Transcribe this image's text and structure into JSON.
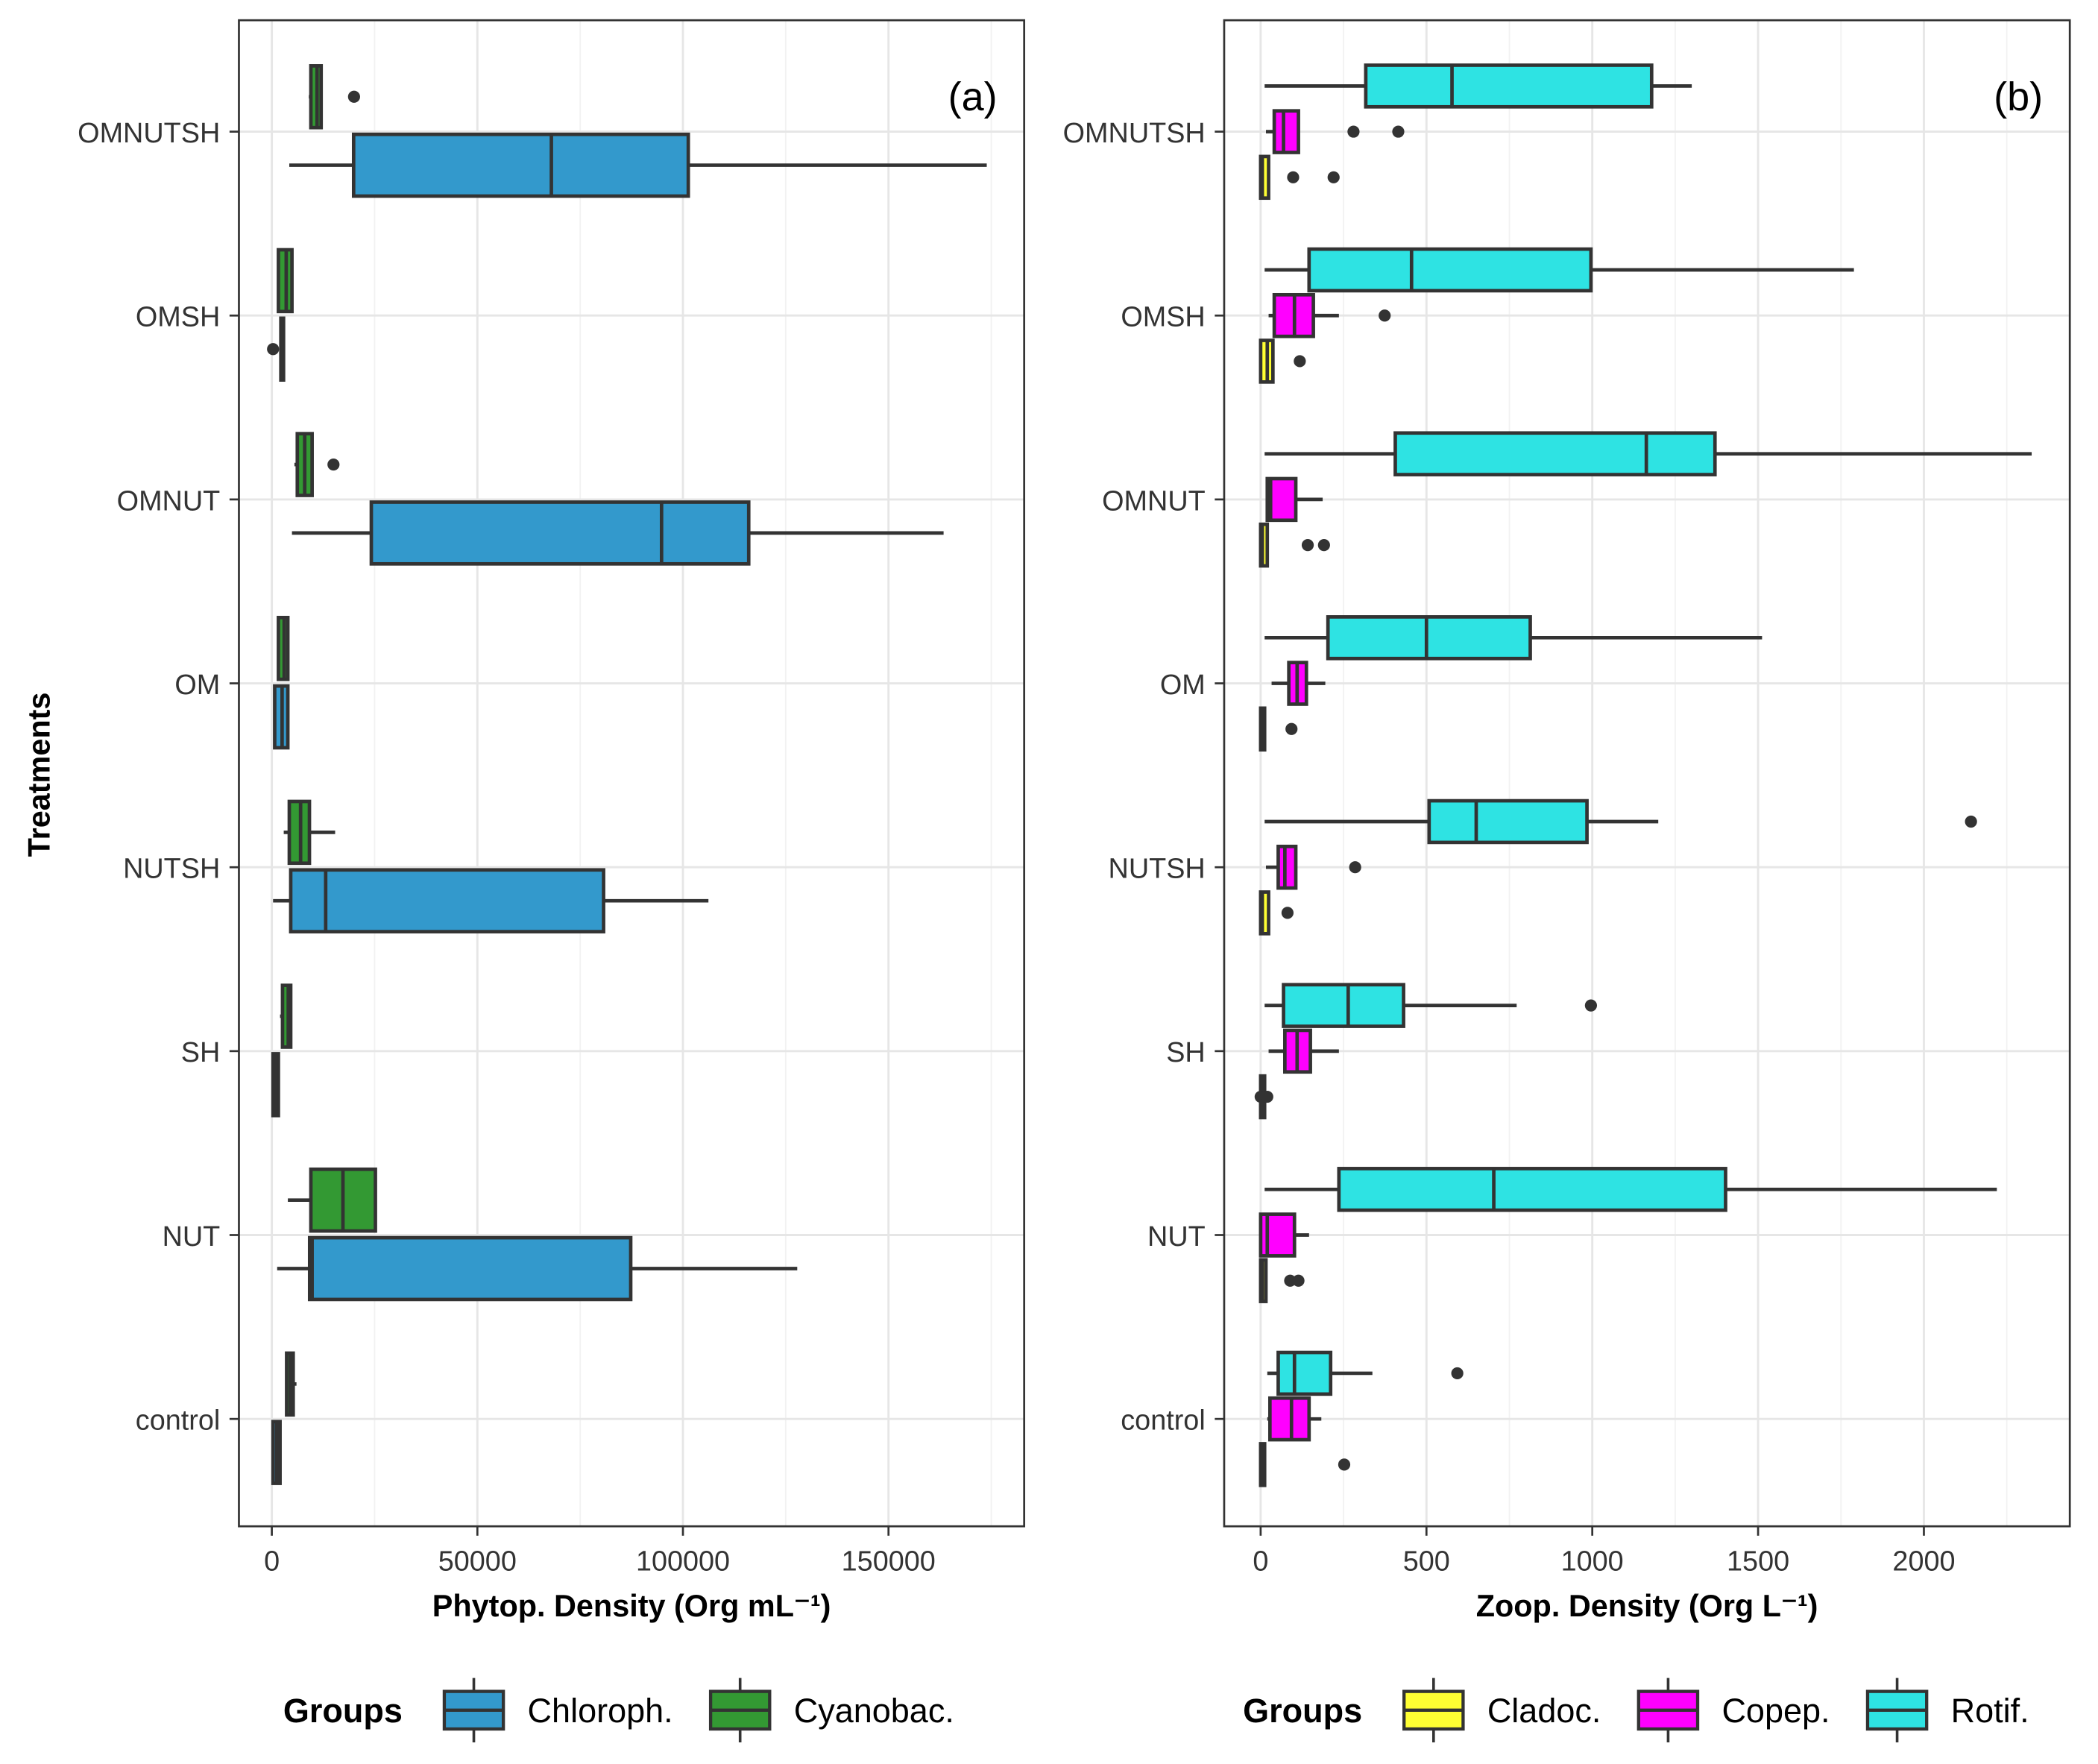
{
  "chart_data": [
    {
      "type": "boxplot",
      "panel_label": "(a)",
      "orientation": "horizontal",
      "xlabel": "Phytop. Density (Org mL⁻¹)",
      "ylabel": "Treatments",
      "xlim": [
        -8000,
        183000
      ],
      "xticks": [
        0,
        50000,
        100000,
        150000
      ],
      "xtick_labels": [
        "0",
        "50000",
        "100000",
        "150000"
      ],
      "categories": [
        "OMNUTSH",
        "OMSH",
        "OMNUT",
        "OM",
        "NUTSH",
        "SH",
        "NUT",
        "control"
      ],
      "legend": {
        "title": "Groups",
        "position": "bottom"
      },
      "groups": [
        {
          "name": "Chloroph.",
          "color": "#3399cc"
        },
        {
          "name": "Cyanobac.",
          "color": "#339933"
        }
      ],
      "data": {
        "OMNUTSH": {
          "Chloroph.": [
            4250,
            19900,
            68000,
            101300,
            173900,
            []
          ],
          "Cyanobac.": [
            9000,
            9500,
            11000,
            12000,
            12000,
            [
              20000
            ]
          ]
        },
        "OMSH": {
          "Chloroph.": [
            2000,
            2200,
            2500,
            2800,
            3000,
            [
              300
            ]
          ],
          "Cyanobac.": [
            1600,
            1600,
            3500,
            4900,
            4900,
            []
          ]
        },
        "OMNUT": {
          "Chloroph.": [
            4900,
            24200,
            94800,
            116000,
            163400,
            []
          ],
          "Cyanobac.": [
            5500,
            6200,
            8000,
            9800,
            9800,
            [
              15000
            ]
          ]
        },
        "OM": {
          "Chloroph.": [
            700,
            700,
            2500,
            3900,
            3900,
            []
          ],
          "Cyanobac.": [
            1600,
            1600,
            3000,
            3900,
            3900,
            []
          ]
        },
        "NUTSH": {
          "Chloroph.": [
            300,
            4600,
            13100,
            80700,
            106200,
            []
          ],
          "Cyanobac.": [
            2900,
            4250,
            7000,
            9150,
            15400,
            []
          ]
        },
        "SH": {
          "Chloroph.": [
            300,
            300,
            1000,
            1600,
            1600,
            []
          ],
          "Cyanobac.": [
            2000,
            2600,
            4000,
            4600,
            4600,
            []
          ]
        },
        "NUT": {
          "Chloroph.": [
            1300,
            9200,
            9800,
            87300,
            127800,
            []
          ],
          "Cyanobac.": [
            3900,
            9500,
            17300,
            25200,
            25200,
            []
          ]
        },
        "control": {
          "Chloroph.": [
            300,
            300,
            1200,
            2000,
            2000,
            []
          ],
          "Cyanobac.": [
            3600,
            3600,
            4500,
            5200,
            6000,
            []
          ]
        }
      }
    },
    {
      "type": "boxplot",
      "panel_label": "(b)",
      "orientation": "horizontal",
      "xlabel": "Zoop. Density (Org L⁻¹)",
      "ylabel": "",
      "xlim": [
        -110,
        2440
      ],
      "xticks": [
        0,
        500,
        1000,
        1500,
        2000
      ],
      "xtick_labels": [
        "0",
        "500",
        "1000",
        "1500",
        "2000"
      ],
      "categories": [
        "OMNUTSH",
        "OMSH",
        "OMNUT",
        "OM",
        "NUTSH",
        "SH",
        "NUT",
        "control"
      ],
      "legend": {
        "title": "Groups",
        "position": "bottom"
      },
      "groups": [
        {
          "name": "Cladoc.",
          "color": "#ffff33"
        },
        {
          "name": "Copep.",
          "color": "#ff00ff"
        },
        {
          "name": "Rotif.",
          "color": "#2ee3e3"
        }
      ],
      "data": {
        "OMNUTSH": {
          "Cladoc.": [
            0,
            0,
            5,
            24,
            24,
            [
              98,
              220
            ]
          ],
          "Copep.": [
            16,
            41,
            69,
            114,
            114,
            [
              280,
              415
            ]
          ],
          "Rotif.": [
            12,
            317,
            577,
            1179,
            1300,
            []
          ]
        },
        "OMSH": {
          "Cladoc.": [
            0,
            0,
            20,
            37,
            37,
            [
              118
            ]
          ],
          "Copep.": [
            24,
            41,
            102,
            159,
            236,
            [
              374
            ]
          ],
          "Rotif.": [
            12,
            146,
            455,
            996,
            1789,
            []
          ]
        },
        "OMNUT": {
          "Cladoc.": [
            0,
            0,
            5,
            20,
            20,
            [
              142,
              191
            ]
          ],
          "Copep.": [
            20,
            20,
            30,
            106,
            187,
            []
          ],
          "Rotif.": [
            12,
            406,
            1163,
            1370,
            2325,
            []
          ]
        },
        "OM": {
          "Cladoc.": [
            0,
            0,
            5,
            12,
            12,
            [
              93
            ]
          ],
          "Copep.": [
            33,
            85,
            110,
            138,
            195,
            []
          ],
          "Rotif.": [
            12,
            203,
            500,
            813,
            1512,
            []
          ]
        },
        "NUTSH": {
          "Cladoc.": [
            0,
            0,
            5,
            24,
            24,
            [
              81
            ]
          ],
          "Copep.": [
            16,
            53,
            73,
            106,
            106,
            [
              285
            ]
          ],
          "Rotif.": [
            12,
            508,
            650,
            984,
            1199,
            [
              2142
            ]
          ]
        },
        "SH": {
          "Cladoc.": [
            0,
            0,
            5,
            12,
            12,
            [
              0,
              20
            ]
          ],
          "Copep.": [
            24,
            73,
            110,
            150,
            236,
            []
          ],
          "Rotif.": [
            12,
            69,
            264,
            431,
            772,
            [
              996
            ]
          ]
        },
        "NUT": {
          "Cladoc.": [
            0,
            0,
            5,
            16,
            16,
            [
              89,
              114
            ]
          ],
          "Copep.": [
            0,
            0,
            20,
            102,
            146,
            []
          ],
          "Rotif.": [
            12,
            236,
            703,
            1402,
            2220,
            []
          ]
        },
        "control": {
          "Cladoc.": [
            0,
            0,
            5,
            12,
            12,
            [
              252
            ]
          ],
          "Copep.": [
            20,
            28,
            93,
            146,
            183,
            []
          ],
          "Rotif.": [
            20,
            53,
            102,
            211,
            337,
            [
              593
            ]
          ]
        }
      }
    }
  ]
}
